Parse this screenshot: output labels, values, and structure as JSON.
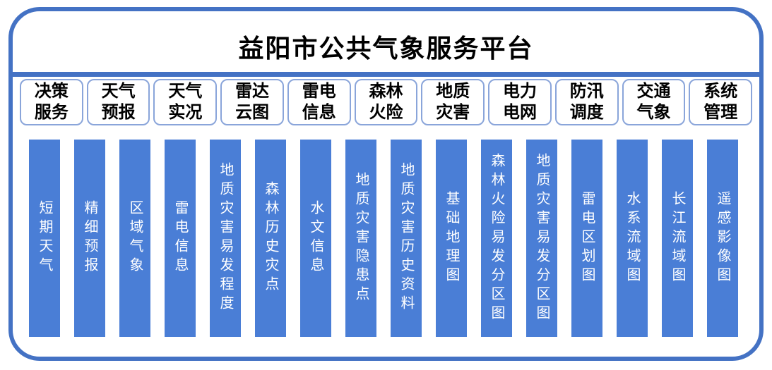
{
  "title": "益阳市公共气象服务平台",
  "colors": {
    "frame_border": "#4472c4",
    "divider": "#4472c4",
    "menu_box_border": "#8aa5da",
    "bar_fill": "#4a7ed6",
    "bar_text": "#ffffff",
    "heading_text": "#000000",
    "background": "#ffffff"
  },
  "menu": {
    "items": [
      {
        "label": "决策服务"
      },
      {
        "label": "天气预报"
      },
      {
        "label": "天气实况"
      },
      {
        "label": "雷达云图"
      },
      {
        "label": "雷电信息"
      },
      {
        "label": "森林火险"
      },
      {
        "label": "地质灾害"
      },
      {
        "label": "电力电网"
      },
      {
        "label": "防汛调度"
      },
      {
        "label": "交通气象"
      },
      {
        "label": "系统管理"
      }
    ]
  },
  "modules": {
    "items": [
      {
        "label": "短期天气"
      },
      {
        "label": "精细预报"
      },
      {
        "label": "区域气象"
      },
      {
        "label": "雷电信息"
      },
      {
        "label": "地质灾害易发程度"
      },
      {
        "label": "森林历史灾点"
      },
      {
        "label": "水文信息"
      },
      {
        "label": "地质灾害隐患点"
      },
      {
        "label": "地质灾害历史资料"
      },
      {
        "label": "基础地理图"
      },
      {
        "label": "森林火险易发分区图"
      },
      {
        "label": "地质灾害易发分区图"
      },
      {
        "label": "雷电区划图"
      },
      {
        "label": "水系流域图"
      },
      {
        "label": "长江流域图"
      },
      {
        "label": "遥感影像图"
      }
    ]
  }
}
